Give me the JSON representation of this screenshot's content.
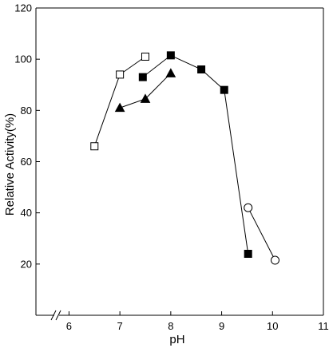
{
  "chart_data": {
    "type": "scatter",
    "title": "",
    "xlabel": "pH",
    "ylabel": "Relative Activity(%)",
    "xlim": [
      5.35,
      11
    ],
    "ylim": [
      0,
      120
    ],
    "x_axis_break": true,
    "xticks": [
      6,
      7,
      8,
      9,
      10,
      11
    ],
    "yticks": [
      20,
      40,
      60,
      80,
      100,
      120
    ],
    "xtick_labels": [
      "6",
      "7",
      "8",
      "9",
      "10",
      "11"
    ],
    "ytick_labels": [
      "20",
      "40",
      "60",
      "80",
      "100",
      "120"
    ],
    "grid": false,
    "legend": "none",
    "series": [
      {
        "marker": "open-square",
        "points": [
          [
            6.5,
            66
          ],
          [
            7.0,
            94
          ],
          [
            7.5,
            101
          ]
        ]
      },
      {
        "marker": "filled-triangle",
        "points": [
          [
            7.0,
            81
          ],
          [
            7.5,
            84.5
          ],
          [
            8.0,
            94.5
          ]
        ]
      },
      {
        "marker": "filled-square",
        "points": [
          [
            7.45,
            93
          ],
          [
            8.0,
            101.5
          ],
          [
            8.6,
            96
          ],
          [
            9.05,
            88
          ],
          [
            9.52,
            24
          ]
        ]
      },
      {
        "marker": "open-circle",
        "points": [
          [
            9.52,
            42
          ],
          [
            10.05,
            21.5
          ]
        ]
      }
    ]
  }
}
